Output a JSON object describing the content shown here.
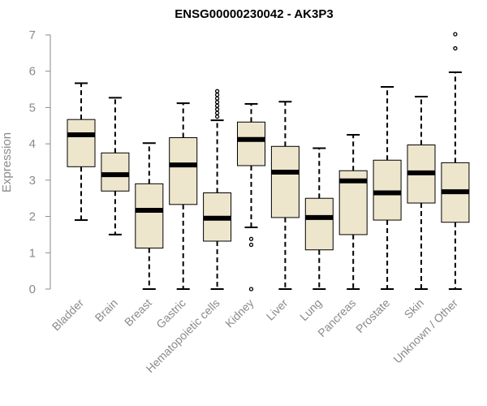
{
  "chart_data": {
    "type": "box",
    "title": "ENSG00000230042 - AK3P3",
    "xlabel": "",
    "ylabel": "Expression",
    "ylim": [
      0,
      7
    ],
    "yticks": [
      0,
      1,
      2,
      3,
      4,
      5,
      6,
      7
    ],
    "grid": false,
    "box_fill": "#ede6cc",
    "categories": [
      "Bladder",
      "Brain",
      "Breast",
      "Gastric",
      "Hematopoietic cells",
      "Kidney",
      "Liver",
      "Lung",
      "Pancreas",
      "Prostate",
      "Skin",
      "Unknown / Other"
    ],
    "boxes": [
      {
        "whisker_low": 1.9,
        "q1": 3.37,
        "median": 4.25,
        "q3": 4.67,
        "whisker_high": 5.67,
        "outliers": []
      },
      {
        "whisker_low": 1.5,
        "q1": 2.7,
        "median": 3.15,
        "q3": 3.75,
        "whisker_high": 5.27,
        "outliers": []
      },
      {
        "whisker_low": 0.0,
        "q1": 1.13,
        "median": 2.17,
        "q3": 2.9,
        "whisker_high": 4.02,
        "outliers": []
      },
      {
        "whisker_low": 0.0,
        "q1": 2.33,
        "median": 3.42,
        "q3": 4.17,
        "whisker_high": 5.12,
        "outliers": []
      },
      {
        "whisker_low": 0.0,
        "q1": 1.32,
        "median": 1.95,
        "q3": 2.65,
        "whisker_high": 4.65,
        "outliers": [
          4.75,
          4.85,
          4.95,
          5.05,
          5.15,
          5.25,
          5.35,
          5.45
        ]
      },
      {
        "whisker_low": 1.7,
        "q1": 3.4,
        "median": 4.12,
        "q3": 4.6,
        "whisker_high": 5.1,
        "outliers": [
          1.38,
          1.22,
          0.0
        ]
      },
      {
        "whisker_low": 0.0,
        "q1": 1.97,
        "median": 3.22,
        "q3": 3.93,
        "whisker_high": 5.16,
        "outliers": []
      },
      {
        "whisker_low": 0.0,
        "q1": 1.08,
        "median": 1.97,
        "q3": 2.5,
        "whisker_high": 3.88,
        "outliers": []
      },
      {
        "whisker_low": 0.0,
        "q1": 1.5,
        "median": 2.98,
        "q3": 3.26,
        "whisker_high": 4.25,
        "outliers": []
      },
      {
        "whisker_low": 0.0,
        "q1": 1.9,
        "median": 2.65,
        "q3": 3.55,
        "whisker_high": 5.57,
        "outliers": []
      },
      {
        "whisker_low": 0.0,
        "q1": 2.37,
        "median": 3.2,
        "q3": 3.97,
        "whisker_high": 5.3,
        "outliers": []
      },
      {
        "whisker_low": 0.0,
        "q1": 1.84,
        "median": 2.68,
        "q3": 3.48,
        "whisker_high": 5.97,
        "outliers": [
          6.63,
          7.02
        ]
      }
    ]
  }
}
